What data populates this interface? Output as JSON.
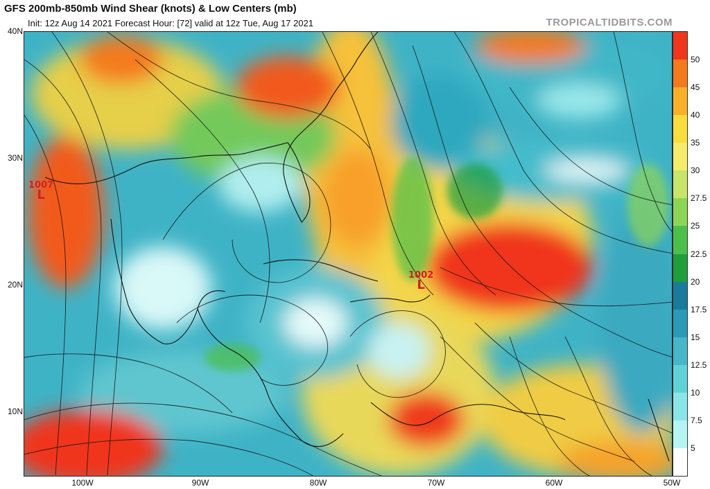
{
  "header": {
    "title": "GFS 200mb-850mb Wind Shear (knots) & Low Centers (mb)",
    "subtitle": "Init: 12z Aug 14 2021   Forecast Hour: [72]   valid at 12z Tue, Aug 17 2021",
    "brand": "TROPICALTIDBITS.COM"
  },
  "axes": {
    "lat_labels": [
      "40N",
      "30N",
      "20N",
      "10N"
    ],
    "lon_labels": [
      "100W",
      "90W",
      "80W",
      "70W",
      "60W",
      "50W"
    ]
  },
  "colorbar": {
    "labels": [
      "50",
      "45",
      "40",
      "35",
      "30",
      "27.5",
      "25",
      "22.5",
      "20",
      "17.5",
      "15",
      "12.5",
      "10",
      "7.5",
      "5"
    ],
    "colors": [
      "#f0351c",
      "#f47a1e",
      "#f8b02a",
      "#f8de3c",
      "#f4ec6a",
      "#c8e46a",
      "#8ed457",
      "#4cbf4a",
      "#1f9e3c",
      "#187c9a",
      "#2b99b8",
      "#45b7c9",
      "#5fd2d8",
      "#8ae6e6",
      "#b6f4f4",
      "#ffffff"
    ]
  },
  "lows": [
    {
      "pressure": "1007",
      "letter": "L"
    },
    {
      "pressure": "1002",
      "letter": "L"
    }
  ]
}
